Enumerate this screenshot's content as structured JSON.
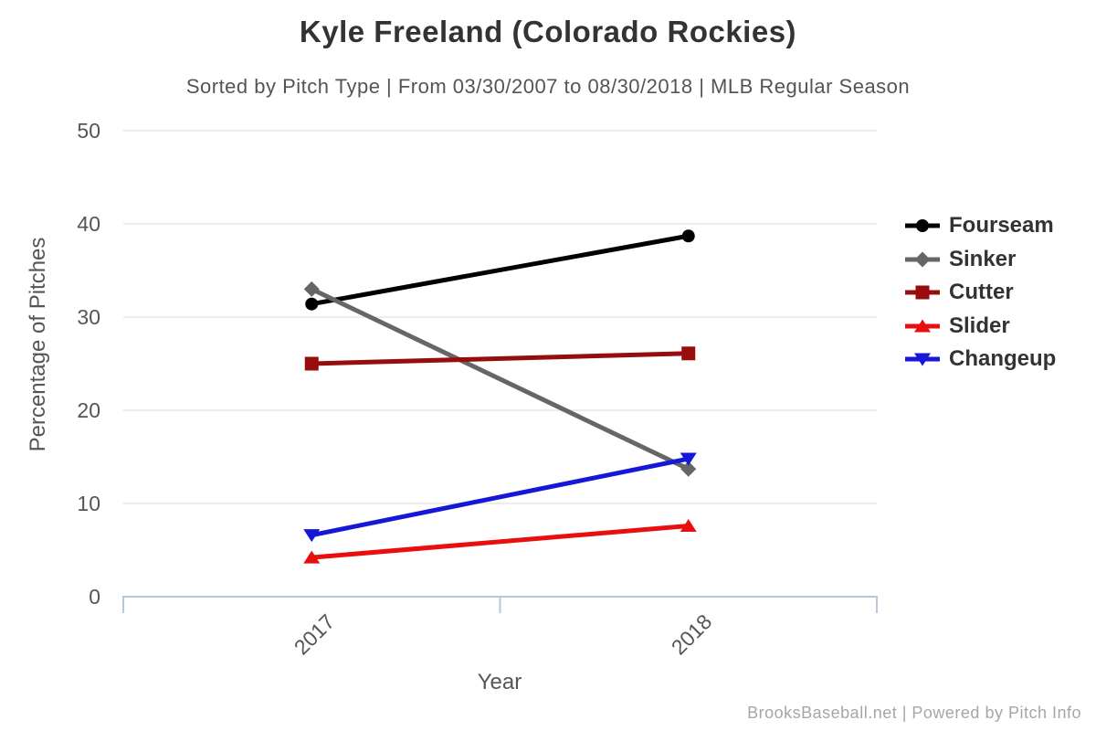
{
  "header": {
    "title": "Kyle Freeland (Colorado Rockies)",
    "subtitle": "Sorted by Pitch Type | From 03/30/2007 to 08/30/2018 | MLB Regular Season"
  },
  "chart_data": {
    "type": "line",
    "categories": [
      "2017",
      "2018"
    ],
    "series": [
      {
        "name": "Fourseam",
        "color": "#000000",
        "marker": "circle",
        "values": [
          31.4,
          38.7
        ]
      },
      {
        "name": "Sinker",
        "color": "#666666",
        "marker": "diamond",
        "values": [
          33.0,
          13.7
        ]
      },
      {
        "name": "Cutter",
        "color": "#970d0d",
        "marker": "square",
        "values": [
          25.0,
          26.1
        ]
      },
      {
        "name": "Slider",
        "color": "#e90f0f",
        "marker": "triangle-up",
        "values": [
          4.2,
          7.6
        ]
      },
      {
        "name": "Changeup",
        "color": "#1717d9",
        "marker": "triangle-down",
        "values": [
          6.6,
          14.8
        ]
      }
    ],
    "xlabel": "Year",
    "ylabel": "Percentage of Pitches",
    "ylim": [
      0,
      50
    ],
    "yticks": [
      0,
      10,
      20,
      30,
      40,
      50
    ],
    "grid": "horizontal",
    "legend_position": "right"
  },
  "footer": {
    "credit": "BrooksBaseball.net | Powered by Pitch Info"
  },
  "colors": {
    "grid": "#e6e6e6",
    "axis": "#b6c8d9",
    "title": "#333333",
    "subtitle": "#545454",
    "tick": "#555555",
    "footer": "#a6a6a6"
  }
}
